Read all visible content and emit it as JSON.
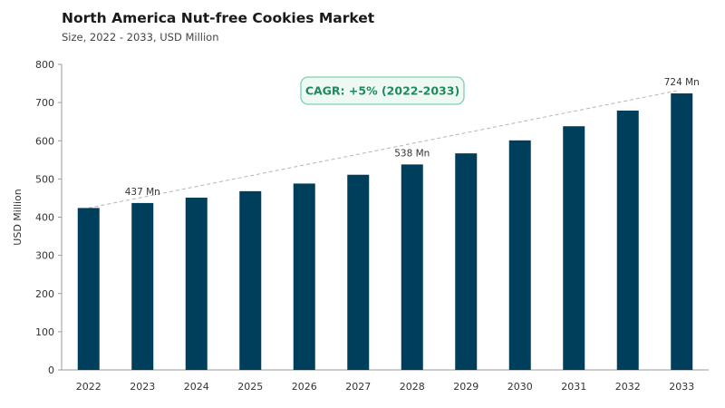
{
  "title": "North America Nut-free Cookies Market",
  "subtitle": "Size, 2022 - 2033, USD Million",
  "cagr_label": "CAGR: +5% (2022-2033)",
  "colors": {
    "bar": "#003f5c",
    "cagr_border": "#7ecfb0",
    "cagr_fill": "#eef9f4",
    "cagr_text": "#1e8a5e",
    "trend": "#b5b5b5"
  },
  "chart_data": {
    "type": "bar",
    "title": "North America Nut-free Cookies Market",
    "subtitle": "Size, 2022 - 2033, USD Million",
    "xlabel": "",
    "ylabel": "USD Million",
    "ylim": [
      0,
      800
    ],
    "yticks": [
      0,
      100,
      200,
      300,
      400,
      500,
      600,
      700,
      800
    ],
    "grid": false,
    "categories": [
      "2022",
      "2023",
      "2024",
      "2025",
      "2026",
      "2027",
      "2028",
      "2029",
      "2030",
      "2031",
      "2032",
      "2033"
    ],
    "values": [
      424,
      437,
      451,
      468,
      488,
      511,
      538,
      567,
      601,
      638,
      679,
      724
    ],
    "data_labels": [
      {
        "index": 1,
        "text": "437 Mn"
      },
      {
        "index": 6,
        "text": "538 Mn"
      },
      {
        "index": 11,
        "text": "724 Mn"
      }
    ],
    "trendline": {
      "from_index": 0,
      "to_index": 11,
      "style": "dashed"
    }
  }
}
